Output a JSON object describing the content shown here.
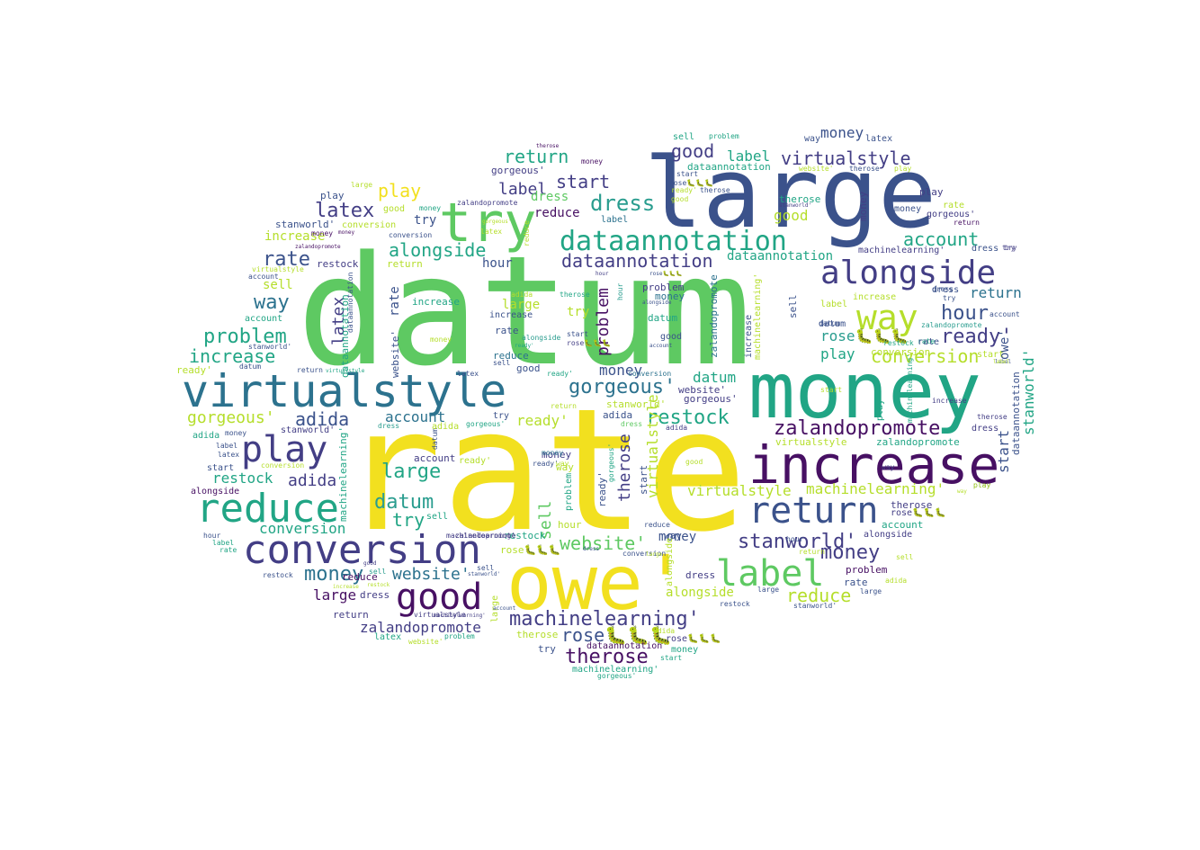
{
  "palette": {
    "yellow": "#f2e01f",
    "lime": "#b5de2b",
    "green": "#5ec962",
    "teal": "#21a585",
    "sea": "#2a9d8f",
    "blue": "#2c728e",
    "navy": "#3b528b",
    "indigo": "#433e85",
    "purple": "#471063"
  },
  "words": [
    "rate",
    "datum",
    "owe'",
    "money",
    "large",
    "increase",
    "virtualstyle",
    "try",
    "return",
    "conversion",
    "reduce",
    "dataannotation",
    "alongside",
    "play",
    "good",
    "label",
    "way",
    "stanworld'",
    "zalandopromote",
    "machinelearning'",
    "therose",
    "rose🐛🐛🐛",
    "adida",
    "hour",
    "gorgeous'",
    "problem",
    "restock",
    "latex",
    "account",
    "ready'",
    "dress",
    "start",
    "website'",
    "sell"
  ]
}
